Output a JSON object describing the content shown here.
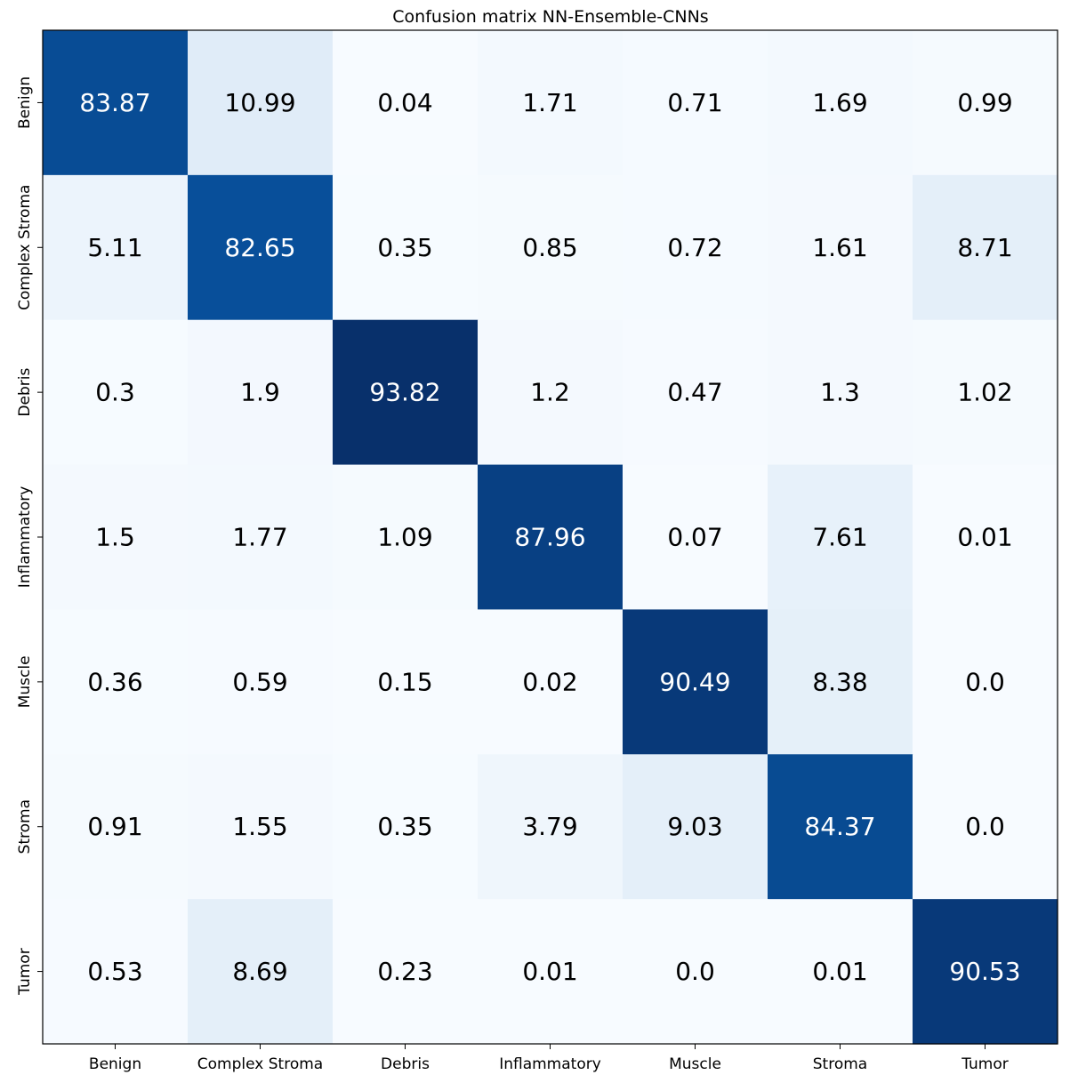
{
  "chart_data": {
    "type": "heatmap",
    "title": "Confusion matrix NN-Ensemble-CNNs",
    "xlabel": "",
    "ylabel": "",
    "x_categories": [
      "Benign",
      "Complex Stroma",
      "Debris",
      "Inflammatory",
      "Muscle",
      "Stroma",
      "Tumor"
    ],
    "y_categories": [
      "Benign",
      "Complex Stroma",
      "Debris",
      "Inflammatory",
      "Muscle",
      "Stroma",
      "Tumor"
    ],
    "values": [
      [
        "83.87",
        "10.99",
        "0.04",
        "1.71",
        "0.71",
        "1.69",
        "0.99"
      ],
      [
        "5.11",
        "82.65",
        "0.35",
        "0.85",
        "0.72",
        "1.61",
        "8.71"
      ],
      [
        "0.3",
        "1.9",
        "93.82",
        "1.2",
        "0.47",
        "1.3",
        "1.02"
      ],
      [
        "1.5",
        "1.77",
        "1.09",
        "87.96",
        "0.07",
        "7.61",
        "0.01"
      ],
      [
        "0.36",
        "0.59",
        "0.15",
        "0.02",
        "90.49",
        "8.38",
        "0.0"
      ],
      [
        "0.91",
        "1.55",
        "0.35",
        "3.79",
        "9.03",
        "84.37",
        "0.0"
      ],
      [
        "0.53",
        "8.69",
        "0.23",
        "0.01",
        "0.0",
        "0.01",
        "90.53"
      ]
    ],
    "colormap": "Blues",
    "value_range": [
      0,
      100
    ],
    "grid": false,
    "colors": {
      "low": "#f7fbff",
      "high": "#08306b",
      "text_dark": "#000000",
      "text_light": "#ffffff"
    }
  }
}
